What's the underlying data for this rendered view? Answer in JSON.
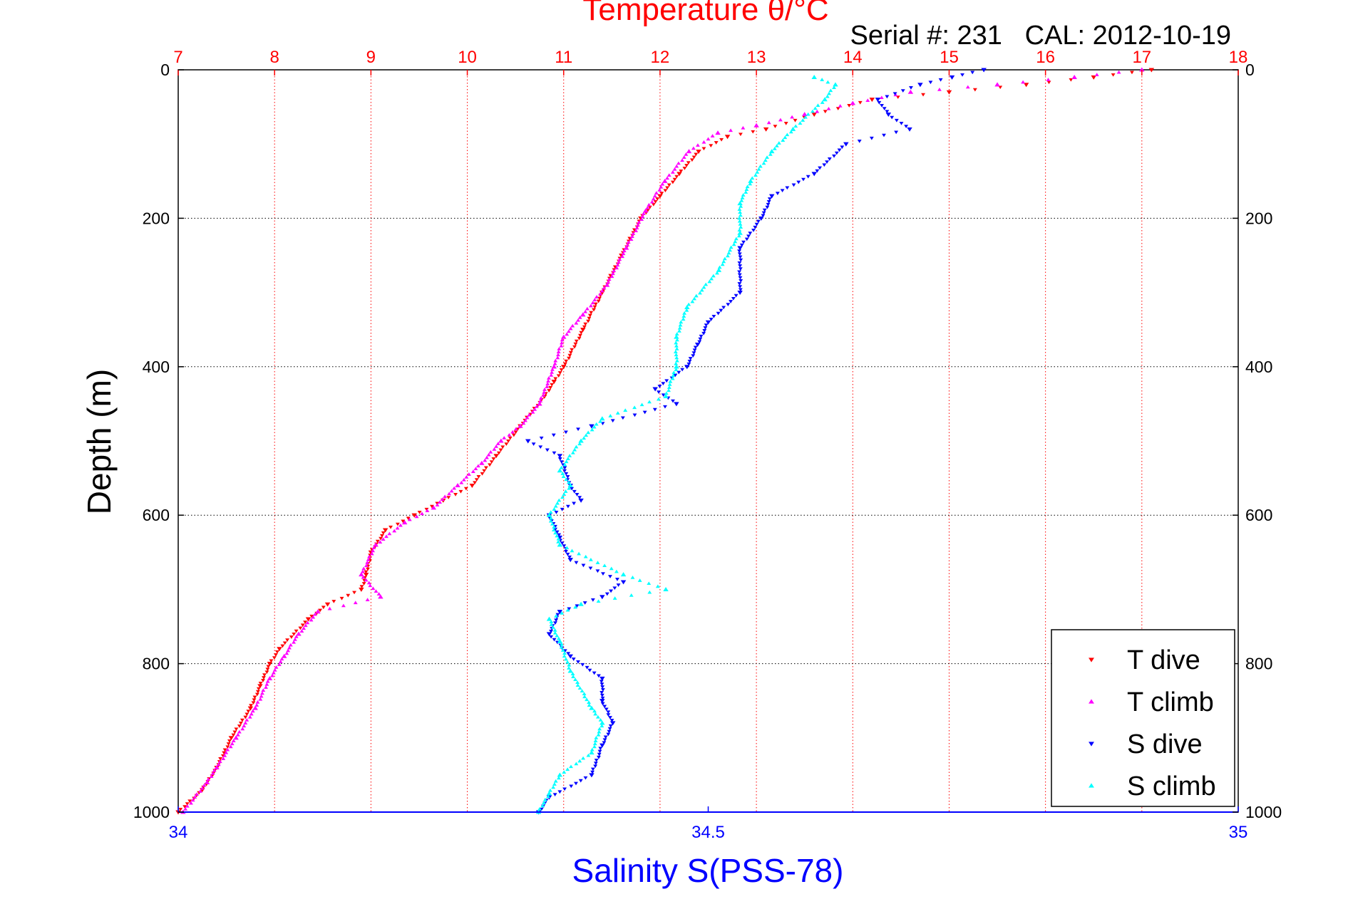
{
  "chart_data": {
    "type": "scatter",
    "title": "Temperature θ/°C",
    "subtitle": "Serial #: 231   CAL: 2012-10-19",
    "xlabel": "Salinity S(PSS-78)",
    "ylabel": "Depth (m)",
    "x_top_ticks": [
      "7",
      "8",
      "9",
      "10",
      "11",
      "12",
      "13",
      "14",
      "15",
      "16",
      "17",
      "18"
    ],
    "x_bottom_ticks": [
      "34",
      "34.5",
      "35"
    ],
    "y_ticks": [
      "0",
      "200",
      "400",
      "600",
      "800",
      "1000"
    ],
    "temperature_range": [
      7,
      18
    ],
    "salinity_range": [
      34,
      35
    ],
    "depth_range": [
      0,
      1000
    ],
    "y_reversed": true,
    "grid": true,
    "legend_position": "bottom-right",
    "series": [
      {
        "name": "T dive",
        "axis": "temperature",
        "color": "#ff0000",
        "marker": "triangle-down",
        "points": [
          [
            17.1,
            0
          ],
          [
            16.5,
            10
          ],
          [
            15.8,
            20
          ],
          [
            15.0,
            30
          ],
          [
            14.2,
            40
          ],
          [
            13.6,
            60
          ],
          [
            13.1,
            80
          ],
          [
            12.7,
            90
          ],
          [
            12.4,
            110
          ],
          [
            12.2,
            140
          ],
          [
            12.0,
            170
          ],
          [
            11.8,
            200
          ],
          [
            11.6,
            250
          ],
          [
            11.4,
            300
          ],
          [
            11.2,
            350
          ],
          [
            11.0,
            400
          ],
          [
            10.9,
            420
          ],
          [
            10.8,
            440
          ],
          [
            10.55,
            480
          ],
          [
            10.3,
            520
          ],
          [
            10.05,
            560
          ],
          [
            9.75,
            580
          ],
          [
            9.45,
            600
          ],
          [
            9.15,
            620
          ],
          [
            9.0,
            650
          ],
          [
            8.95,
            680
          ],
          [
            8.9,
            700
          ],
          [
            8.55,
            720
          ],
          [
            8.35,
            740
          ],
          [
            8.05,
            780
          ],
          [
            7.95,
            800
          ],
          [
            7.85,
            830
          ],
          [
            7.75,
            860
          ],
          [
            7.55,
            900
          ],
          [
            7.4,
            940
          ],
          [
            7.25,
            970
          ],
          [
            7.0,
            1000
          ]
        ]
      },
      {
        "name": "T climb",
        "axis": "temperature",
        "color": "#ff00ff",
        "marker": "triangle-up",
        "points": [
          [
            17.0,
            0
          ],
          [
            16.3,
            10
          ],
          [
            15.5,
            20
          ],
          [
            14.6,
            30
          ],
          [
            14.0,
            45
          ],
          [
            13.5,
            60
          ],
          [
            13.0,
            75
          ],
          [
            12.6,
            85
          ],
          [
            12.3,
            110
          ],
          [
            12.05,
            150
          ],
          [
            11.85,
            190
          ],
          [
            11.65,
            240
          ],
          [
            11.45,
            290
          ],
          [
            11.2,
            330
          ],
          [
            11.0,
            360
          ],
          [
            10.9,
            400
          ],
          [
            10.75,
            450
          ],
          [
            10.55,
            480
          ],
          [
            10.35,
            500
          ],
          [
            10.15,
            530
          ],
          [
            9.9,
            560
          ],
          [
            9.65,
            590
          ],
          [
            9.35,
            610
          ],
          [
            9.05,
            640
          ],
          [
            8.9,
            680
          ],
          [
            9.1,
            710
          ],
          [
            8.45,
            730
          ],
          [
            8.25,
            760
          ],
          [
            8.1,
            790
          ],
          [
            7.95,
            820
          ],
          [
            7.8,
            860
          ],
          [
            7.6,
            900
          ],
          [
            7.4,
            940
          ],
          [
            7.3,
            960
          ],
          [
            7.05,
            1000
          ]
        ]
      },
      {
        "name": "S dive",
        "axis": "salinity",
        "color": "#0000ff",
        "marker": "triangle-down",
        "points": [
          [
            34.76,
            0
          ],
          [
            34.73,
            10
          ],
          [
            34.7,
            20
          ],
          [
            34.66,
            40
          ],
          [
            34.67,
            60
          ],
          [
            34.69,
            80
          ],
          [
            34.63,
            100
          ],
          [
            34.6,
            140
          ],
          [
            34.56,
            170
          ],
          [
            34.55,
            200
          ],
          [
            34.53,
            240
          ],
          [
            34.53,
            300
          ],
          [
            34.5,
            340
          ],
          [
            34.49,
            370
          ],
          [
            34.48,
            400
          ],
          [
            34.45,
            430
          ],
          [
            34.47,
            450
          ],
          [
            34.39,
            480
          ],
          [
            34.33,
            500
          ],
          [
            34.36,
            520
          ],
          [
            34.37,
            560
          ],
          [
            34.38,
            580
          ],
          [
            34.35,
            600
          ],
          [
            34.36,
            630
          ],
          [
            34.37,
            660
          ],
          [
            34.42,
            690
          ],
          [
            34.4,
            710
          ],
          [
            34.36,
            730
          ],
          [
            34.35,
            760
          ],
          [
            34.37,
            790
          ],
          [
            34.4,
            820
          ],
          [
            34.4,
            850
          ],
          [
            34.41,
            880
          ],
          [
            34.4,
            910
          ],
          [
            34.39,
            950
          ],
          [
            34.35,
            980
          ],
          [
            34.34,
            1000
          ]
        ]
      },
      {
        "name": "S climb",
        "axis": "salinity",
        "color": "#00ffff",
        "marker": "triangle-up",
        "points": [
          [
            34.6,
            10
          ],
          [
            34.62,
            20
          ],
          [
            34.61,
            40
          ],
          [
            34.58,
            80
          ],
          [
            34.56,
            110
          ],
          [
            34.54,
            150
          ],
          [
            34.53,
            180
          ],
          [
            34.53,
            220
          ],
          [
            34.51,
            270
          ],
          [
            34.48,
            320
          ],
          [
            34.47,
            360
          ],
          [
            34.47,
            400
          ],
          [
            34.46,
            440
          ],
          [
            34.4,
            470
          ],
          [
            34.38,
            500
          ],
          [
            34.36,
            540
          ],
          [
            34.37,
            560
          ],
          [
            34.35,
            600
          ],
          [
            34.36,
            640
          ],
          [
            34.42,
            680
          ],
          [
            34.46,
            700
          ],
          [
            34.38,
            720
          ],
          [
            34.35,
            740
          ],
          [
            34.36,
            770
          ],
          [
            34.37,
            810
          ],
          [
            34.39,
            860
          ],
          [
            34.4,
            880
          ],
          [
            34.39,
            920
          ],
          [
            34.36,
            950
          ],
          [
            34.35,
            975
          ],
          [
            34.34,
            1000
          ]
        ]
      }
    ]
  }
}
